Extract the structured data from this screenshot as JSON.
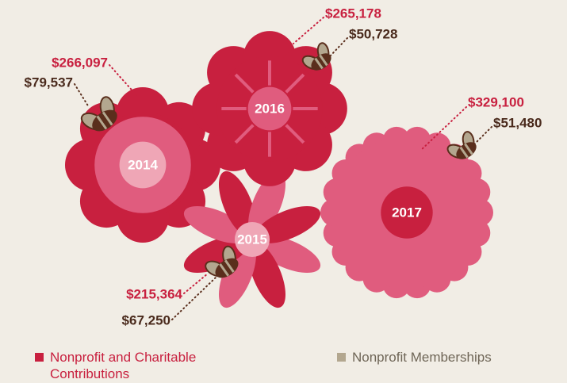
{
  "chart_data": {
    "type": "flower",
    "categories": [
      "2014",
      "2015",
      "2016",
      "2017"
    ],
    "series": [
      {
        "name": "Nonprofit and Charitable Contributions",
        "color": "#c8203f",
        "values": [
          266097,
          215364,
          265178,
          329100
        ],
        "value_labels": [
          "$266,097",
          "$215,364",
          "$265,178",
          "$329,100"
        ]
      },
      {
        "name": "Nonprofit Memberships",
        "color": "#b3a78f",
        "values": [
          79537,
          67250,
          50728,
          51480
        ],
        "value_labels": [
          "$79,537",
          "$67,250",
          "$50,728",
          "$51,480"
        ]
      }
    ]
  }
}
